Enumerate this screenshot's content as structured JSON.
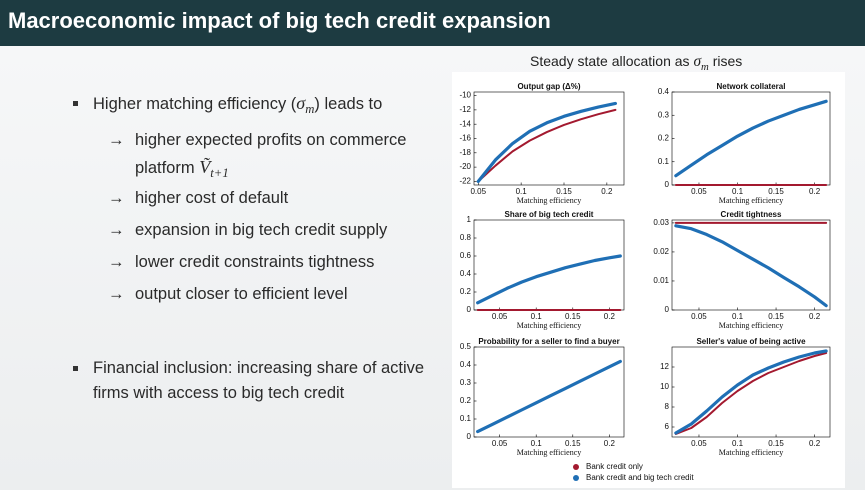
{
  "slide": {
    "title": "Macroeconomic impact of big tech credit expansion",
    "heading": [
      "Steady state allocation as ",
      "σ",
      "m",
      " rises"
    ],
    "arrow": "→",
    "bullet1": [
      "Higher matching efficiency (",
      "σ",
      "m",
      ") leads to"
    ],
    "subitems": [
      [
        "higher expected profits on commerce",
        "platform ",
        "Ṽ",
        "t+1"
      ],
      [
        "higher cost of default"
      ],
      [
        "expansion in big tech credit supply"
      ],
      [
        "lower credit constraints tightness"
      ],
      [
        "output closer to efficient level"
      ]
    ],
    "bullet2": "Financial inclusion: increasing share of active firms with access to big tech credit"
  },
  "chart_data": [
    {
      "type": "line",
      "title": "Output gap (Δ%)",
      "xlabel": "Matching efficiency",
      "x": [
        0.05,
        0.07,
        0.09,
        0.11,
        0.13,
        0.15,
        0.17,
        0.19,
        0.21
      ],
      "xlim": [
        0.045,
        0.22
      ],
      "xticks": [
        0.05,
        0.1,
        0.15,
        0.2
      ],
      "ylim": [
        -22.5,
        -9.5
      ],
      "yticks": [
        -10,
        -12,
        -14,
        -16,
        -18,
        -20,
        -22
      ],
      "series": [
        {
          "name": "Bank credit only",
          "color": "#a3192f",
          "values": [
            -22,
            -19.8,
            -17.8,
            -16.3,
            -15.1,
            -14.1,
            -13.3,
            -12.6,
            -12
          ]
        },
        {
          "name": "Bank credit and big tech credit",
          "color": "#1f6fb5",
          "values": [
            -22,
            -19,
            -16.7,
            -15,
            -13.8,
            -12.9,
            -12.2,
            -11.6,
            -11.1
          ]
        }
      ]
    },
    {
      "type": "line",
      "title": "Network collateral",
      "xlabel": "Matching efficiency",
      "x": [
        0.02,
        0.04,
        0.06,
        0.08,
        0.1,
        0.12,
        0.14,
        0.16,
        0.18,
        0.2,
        0.215
      ],
      "xlim": [
        0.015,
        0.22
      ],
      "xticks": [
        0.05,
        0.1,
        0.15,
        0.2
      ],
      "ylim": [
        0,
        0.4
      ],
      "yticks": [
        0,
        0.1,
        0.2,
        0.3,
        0.4
      ],
      "series": [
        {
          "color": "#a3192f",
          "values": [
            0,
            0,
            0,
            0,
            0,
            0,
            0,
            0,
            0,
            0,
            0
          ]
        },
        {
          "color": "#1f6fb5",
          "values": [
            0.04,
            0.085,
            0.13,
            0.17,
            0.21,
            0.245,
            0.275,
            0.3,
            0.325,
            0.345,
            0.36
          ]
        }
      ]
    },
    {
      "type": "line",
      "title": "Share of big tech credit",
      "xlabel": "Matching efficiency",
      "x": [
        0.02,
        0.04,
        0.06,
        0.08,
        0.1,
        0.12,
        0.14,
        0.16,
        0.18,
        0.2,
        0.215
      ],
      "xlim": [
        0.015,
        0.22
      ],
      "xticks": [
        0.05,
        0.1,
        0.15,
        0.2
      ],
      "ylim": [
        0,
        1
      ],
      "yticks": [
        0,
        0.2,
        0.4,
        0.6,
        0.8,
        1
      ],
      "series": [
        {
          "color": "#a3192f",
          "values": [
            0,
            0,
            0,
            0,
            0,
            0,
            0,
            0,
            0,
            0,
            0
          ]
        },
        {
          "color": "#1f6fb5",
          "values": [
            0.08,
            0.16,
            0.24,
            0.31,
            0.37,
            0.42,
            0.47,
            0.51,
            0.55,
            0.58,
            0.6
          ]
        }
      ]
    },
    {
      "type": "line",
      "title": "Credit tightness",
      "xlabel": "Matching efficiency",
      "x": [
        0.02,
        0.04,
        0.06,
        0.08,
        0.1,
        0.12,
        0.14,
        0.16,
        0.18,
        0.2,
        0.215
      ],
      "xlim": [
        0.015,
        0.22
      ],
      "xticks": [
        0.05,
        0.1,
        0.15,
        0.2
      ],
      "ylim": [
        0,
        0.031
      ],
      "yticks": [
        0,
        0.01,
        0.02,
        0.03
      ],
      "series": [
        {
          "color": "#a3192f",
          "values": [
            0.03,
            0.03,
            0.03,
            0.03,
            0.03,
            0.03,
            0.03,
            0.03,
            0.03,
            0.03,
            0.03
          ]
        },
        {
          "color": "#1f6fb5",
          "values": [
            0.029,
            0.028,
            0.026,
            0.0235,
            0.0205,
            0.0175,
            0.0145,
            0.0112,
            0.008,
            0.0045,
            0.0015
          ]
        }
      ]
    },
    {
      "type": "line",
      "title": "Probability for a seller to find a buyer",
      "xlabel": "Matching efficiency",
      "x": [
        0.02,
        0.04,
        0.06,
        0.08,
        0.1,
        0.12,
        0.14,
        0.16,
        0.18,
        0.2,
        0.215
      ],
      "xlim": [
        0.015,
        0.22
      ],
      "xticks": [
        0.05,
        0.1,
        0.15,
        0.2
      ],
      "ylim": [
        0,
        0.5
      ],
      "yticks": [
        0,
        0.1,
        0.2,
        0.3,
        0.4,
        0.5
      ],
      "series": [
        {
          "color": "#a3192f",
          "values": [
            0.03,
            0.07,
            0.11,
            0.15,
            0.19,
            0.23,
            0.27,
            0.31,
            0.35,
            0.39,
            0.42
          ]
        },
        {
          "color": "#1f6fb5",
          "values": [
            0.03,
            0.07,
            0.11,
            0.15,
            0.19,
            0.23,
            0.27,
            0.31,
            0.35,
            0.39,
            0.42
          ]
        }
      ]
    },
    {
      "type": "line",
      "title": "Seller's value of being active",
      "xlabel": "Matching efficiency",
      "x": [
        0.02,
        0.04,
        0.06,
        0.08,
        0.1,
        0.12,
        0.14,
        0.16,
        0.18,
        0.2,
        0.215
      ],
      "xlim": [
        0.015,
        0.22
      ],
      "xticks": [
        0.05,
        0.1,
        0.15,
        0.2
      ],
      "ylim": [
        5,
        14
      ],
      "yticks": [
        6,
        8,
        10,
        12
      ],
      "series": [
        {
          "color": "#a3192f",
          "values": [
            5.3,
            5.9,
            7,
            8.4,
            9.6,
            10.6,
            11.4,
            12,
            12.6,
            13.1,
            13.4
          ]
        },
        {
          "color": "#1f6fb5",
          "values": [
            5.4,
            6.3,
            7.6,
            9,
            10.2,
            11.2,
            11.9,
            12.5,
            13,
            13.4,
            13.6
          ]
        }
      ]
    }
  ]
}
